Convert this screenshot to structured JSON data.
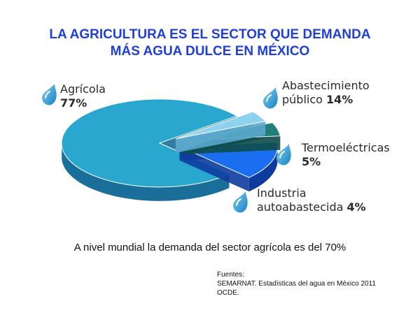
{
  "title": {
    "line1": "LA AGRICULTURA ES EL SECTOR QUE DEMANDA",
    "line2": "MÁS AGUA DULCE EN MÉXICO"
  },
  "chart_data": {
    "type": "pie",
    "slices": [
      {
        "label": "Agrícola",
        "value": 77,
        "value_label": "77%",
        "color": "#2aa7cf",
        "side": "#1a6f9a"
      },
      {
        "label": "Abastecimiento público",
        "label_lines": [
          "Abastecimiento",
          "público"
        ],
        "value": 14,
        "value_label": "14%",
        "color": "#1a6ff0",
        "side": "#0d3c9e"
      },
      {
        "label": "Termoeléctricas",
        "value": 5,
        "value_label": "5%",
        "color": "#1f7f7b",
        "side": "#0f4d4a"
      },
      {
        "label": "Industria autoabastecida",
        "label_lines": [
          "Industria",
          "autoabastecida"
        ],
        "value": 4,
        "value_label": "4%",
        "color": "#8fd2ef",
        "side": "#5aa7cc"
      }
    ],
    "legend": "none"
  },
  "icons": [
    "water-drop-icon"
  ],
  "note": "A nivel mundial la demanda del sector agrícola es del 70%",
  "sources": {
    "heading": "Fuentes:",
    "line1": "SEMARNAT. Estadísticas del agua en México 2011",
    "line2": "OCDE."
  }
}
